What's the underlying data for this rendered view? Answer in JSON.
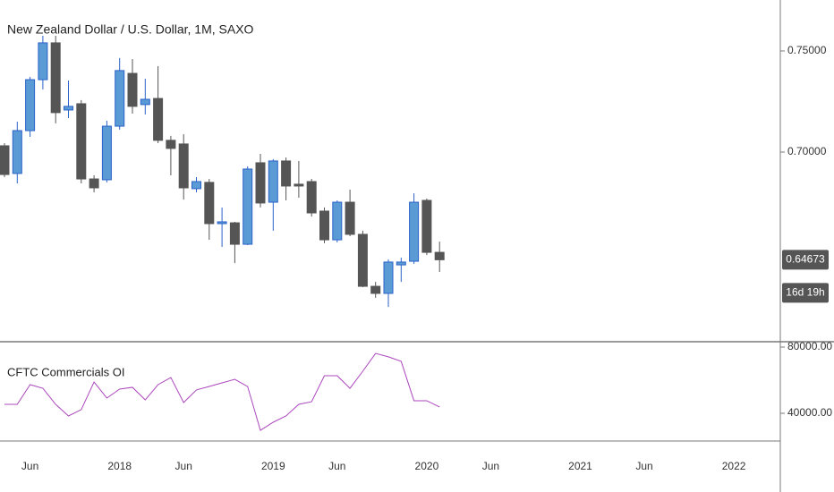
{
  "chart_data": [
    {
      "type": "candlestick",
      "title": "New Zealand Dollar / U.S. Dollar, 1M, SAXO",
      "x": [
        "2017-04",
        "2017-05",
        "2017-06",
        "2017-07",
        "2017-08",
        "2017-09",
        "2017-10",
        "2017-11",
        "2017-12",
        "2018-01",
        "2018-02",
        "2018-03",
        "2018-04",
        "2018-05",
        "2018-06",
        "2018-07",
        "2018-08",
        "2018-09",
        "2018-10",
        "2018-11",
        "2018-12",
        "2019-01",
        "2019-02",
        "2019-03",
        "2019-04",
        "2019-05",
        "2019-06",
        "2019-07",
        "2019-08",
        "2019-09",
        "2019-10",
        "2019-11",
        "2019-12",
        "2020-01",
        "2020-02"
      ],
      "open": [
        0.7031,
        0.6894,
        0.7106,
        0.7358,
        0.754,
        0.7208,
        0.7239,
        0.6867,
        0.6863,
        0.7128,
        0.7389,
        0.7235,
        0.7265,
        0.7058,
        0.704,
        0.6819,
        0.685,
        0.6646,
        0.665,
        0.6544,
        0.6947,
        0.6752,
        0.6956,
        0.6841,
        0.6854,
        0.6708,
        0.6566,
        0.6752,
        0.6593,
        0.6336,
        0.6301,
        0.6442,
        0.646,
        0.6761,
        0.6504
      ],
      "high": [
        0.7044,
        0.715,
        0.7372,
        0.7575,
        0.7575,
        0.7354,
        0.7257,
        0.6885,
        0.7155,
        0.7465,
        0.746,
        0.7363,
        0.7425,
        0.708,
        0.7088,
        0.6876,
        0.6867,
        0.6726,
        0.6655,
        0.6929,
        0.6991,
        0.6965,
        0.6973,
        0.6956,
        0.6867,
        0.6726,
        0.6761,
        0.6814,
        0.6611,
        0.6358,
        0.6469,
        0.6478,
        0.6796,
        0.677,
        0.6557
      ],
      "low": [
        0.6876,
        0.6845,
        0.7075,
        0.731,
        0.7142,
        0.7168,
        0.6845,
        0.6801,
        0.685,
        0.7111,
        0.719,
        0.7186,
        0.7044,
        0.6885,
        0.6765,
        0.6801,
        0.6566,
        0.6531,
        0.6451,
        0.654,
        0.6726,
        0.6611,
        0.6761,
        0.6774,
        0.6681,
        0.6549,
        0.6553,
        0.6584,
        0.6332,
        0.6279,
        0.6234,
        0.6358,
        0.6447,
        0.6491,
        0.6407
      ],
      "close": [
        0.6889,
        0.7106,
        0.7358,
        0.754,
        0.7195,
        0.7226,
        0.6867,
        0.6823,
        0.7128,
        0.7403,
        0.7226,
        0.7261,
        0.7058,
        0.7018,
        0.6823,
        0.6854,
        0.6646,
        0.6655,
        0.6544,
        0.6916,
        0.6748,
        0.6956,
        0.6832,
        0.6832,
        0.6699,
        0.6566,
        0.6752,
        0.6593,
        0.6336,
        0.6301,
        0.6456,
        0.6456,
        0.6752,
        0.6504,
        0.64673
      ],
      "up_color": "#5b9bd5",
      "up_border": "#2a62c9",
      "down_color": "#555555",
      "ylim": [
        0.6062,
        0.7752
      ],
      "yticks": [
        {
          "value": 0.7,
          "label": "0.70000"
        },
        {
          "value": 0.75,
          "label": "0.75000"
        }
      ],
      "countdown": "16d 19h",
      "xticks": [
        {
          "value": "2017-06",
          "label": "Jun"
        },
        {
          "value": "2018-01",
          "label": "2018"
        },
        {
          "value": "2018-06",
          "label": "Jun"
        },
        {
          "value": "2019-01",
          "label": "2019"
        },
        {
          "value": "2019-06",
          "label": "Jun"
        },
        {
          "value": "2020-01",
          "label": "2020"
        },
        {
          "value": "2020-06",
          "label": "Jun"
        },
        {
          "value": "2021-01",
          "label": "2021"
        },
        {
          "value": "2021-06",
          "label": "Jun"
        },
        {
          "value": "2022-01",
          "label": "2022"
        }
      ]
    },
    {
      "type": "line",
      "title": "CFTC Commercials OI",
      "x": [
        "2017-04",
        "2017-05",
        "2017-06",
        "2017-07",
        "2017-08",
        "2017-09",
        "2017-10",
        "2017-11",
        "2017-12",
        "2018-01",
        "2018-02",
        "2018-03",
        "2018-04",
        "2018-05",
        "2018-06",
        "2018-07",
        "2018-08",
        "2018-09",
        "2018-10",
        "2018-11",
        "2018-12",
        "2019-01",
        "2019-02",
        "2019-03",
        "2019-04",
        "2019-05",
        "2019-06",
        "2019-07",
        "2019-08",
        "2019-09",
        "2019-10",
        "2019-11",
        "2019-12",
        "2020-01",
        "2020-02"
      ],
      "values": [
        45400,
        45400,
        57300,
        55100,
        45400,
        38400,
        42200,
        58900,
        49200,
        54600,
        55700,
        48100,
        57300,
        61600,
        46500,
        54100,
        56200,
        58400,
        60500,
        56200,
        29700,
        34600,
        38400,
        45400,
        47000,
        62700,
        62700,
        55100,
        65400,
        76200,
        74100,
        71400,
        47600,
        47600,
        43800
      ],
      "color": "#ab47bc",
      "ylim": [
        23250,
        82700
      ],
      "yticks": [
        {
          "value": 40000,
          "label": "40000.00"
        },
        {
          "value": 80000,
          "label": "80000.00"
        }
      ]
    }
  ]
}
